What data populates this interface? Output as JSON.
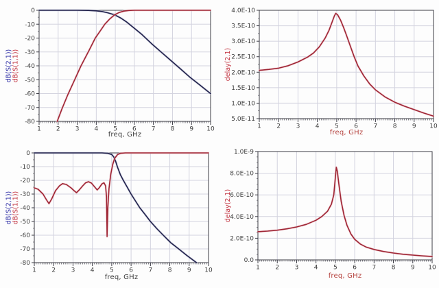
{
  "palette": {
    "grid": "#d3d3df",
    "frame": "#3a3a44",
    "tick_text": "#3c3c3c",
    "blue_trace": "#20204a",
    "blue_halo": "#bcc0d6",
    "red_trace": "#9e2534",
    "red_halo": "#efc0c7",
    "blue_label": "#2a2aa4",
    "red_label": "#c23340",
    "dark_label": "#3c3c3c"
  },
  "chart_data": [
    {
      "type": "line",
      "name": "lowpass-butterworth-sparams",
      "x_label": "freq, GHz",
      "x_label_color": "#3c3c3c",
      "y_axis_labels": [
        {
          "text": "dB(S(2,1))",
          "color": "#2a2aa4"
        },
        {
          "text": "dB(S(1,1))",
          "color": "#c23340"
        }
      ],
      "x_axis": {
        "min": 1,
        "max": 10,
        "minor_step": 0.1,
        "tick_values": [
          1,
          2,
          3,
          4,
          5,
          6,
          7,
          8,
          9,
          10
        ],
        "tick_labels": [
          "1",
          "2",
          "3",
          "4",
          "5",
          "6",
          "7",
          "8",
          "9",
          "10"
        ]
      },
      "y_axis": {
        "min": -80,
        "max": 0,
        "minor_divs": 2,
        "tick_values": [
          0,
          -10,
          -20,
          -30,
          -40,
          -50,
          -60,
          -70,
          -80
        ],
        "tick_labels": [
          "0",
          "-10",
          "-20",
          "-30",
          "-40",
          "-50",
          "-60",
          "-70",
          "-80"
        ]
      },
      "series": [
        {
          "name": "dB(S(2,1))",
          "color": "#20204a",
          "halo": "#bcc0d6",
          "points": [
            [
              1,
              0
            ],
            [
              2,
              0
            ],
            [
              3,
              0
            ],
            [
              3.6,
              -0.1
            ],
            [
              4.0,
              -0.4
            ],
            [
              4.3,
              -0.9
            ],
            [
              4.6,
              -1.8
            ],
            [
              4.97,
              -3.3
            ],
            [
              5.3,
              -5.7
            ],
            [
              5.6,
              -8.5
            ],
            [
              6.0,
              -13
            ],
            [
              6.4,
              -17.5
            ],
            [
              6.9,
              -24
            ],
            [
              7.4,
              -30
            ],
            [
              7.9,
              -36
            ],
            [
              8.4,
              -42
            ],
            [
              8.9,
              -48
            ],
            [
              9.45,
              -54
            ],
            [
              10,
              -60
            ]
          ]
        },
        {
          "name": "dB(S(1,1))",
          "color": "#9e2534",
          "halo": "#efc0c7",
          "points": [
            [
              1.95,
              -80
            ],
            [
              2.2,
              -71
            ],
            [
              2.5,
              -61
            ],
            [
              2.85,
              -50.5
            ],
            [
              3.2,
              -40
            ],
            [
              3.6,
              -29.5
            ],
            [
              3.95,
              -20
            ],
            [
              4.2,
              -15
            ],
            [
              4.45,
              -10
            ],
            [
              4.7,
              -6.3
            ],
            [
              4.97,
              -3.2
            ],
            [
              5.2,
              -1.6
            ],
            [
              5.45,
              -0.6
            ],
            [
              5.7,
              -0.15
            ],
            [
              6,
              0
            ],
            [
              7,
              0
            ],
            [
              8,
              0
            ],
            [
              9,
              0
            ],
            [
              10,
              0
            ]
          ]
        }
      ]
    },
    {
      "type": "line",
      "name": "group-delay-butterworth",
      "x_label": "freq, GHz",
      "x_label_color": "#b5423e",
      "y_axis_labels": [
        {
          "text": "delay(2,1)",
          "color": "#c23340"
        }
      ],
      "x_axis": {
        "min": 1,
        "max": 10,
        "minor_step": 0.1,
        "tick_values": [
          1,
          2,
          3,
          4,
          5,
          6,
          7,
          8,
          9,
          10
        ],
        "tick_labels": [
          "1",
          "2",
          "3",
          "4",
          "5",
          "6",
          "7",
          "8",
          "9",
          "10"
        ]
      },
      "y_axis": {
        "min": 5e-11,
        "max": 4e-10,
        "minor_divs": 2,
        "tick_values": [
          4e-10,
          3.5e-10,
          3e-10,
          2.5e-10,
          2e-10,
          1.5e-10,
          1e-10,
          5e-11
        ],
        "tick_labels": [
          "4.0E-10",
          "3.5E-10",
          "3.0E-10",
          "2.5E-10",
          "2.0E-10",
          "1.5E-10",
          "1.0E-10",
          "5.0E-11"
        ]
      },
      "series": [
        {
          "name": "delay(2,1)",
          "color": "#9e2534",
          "halo": "#efc0c7",
          "points": [
            [
              1,
              2.06e-10
            ],
            [
              1.5,
              2.09e-10
            ],
            [
              2,
              2.13e-10
            ],
            [
              2.5,
              2.21e-10
            ],
            [
              3,
              2.33e-10
            ],
            [
              3.5,
              2.49e-10
            ],
            [
              3.8,
              2.62e-10
            ],
            [
              4.1,
              2.82e-10
            ],
            [
              4.4,
              3.1e-10
            ],
            [
              4.6,
              3.35e-10
            ],
            [
              4.75,
              3.6e-10
            ],
            [
              4.88,
              3.82e-10
            ],
            [
              4.95,
              3.9e-10
            ],
            [
              5.05,
              3.85e-10
            ],
            [
              5.2,
              3.68e-10
            ],
            [
              5.35,
              3.45e-10
            ],
            [
              5.5,
              3.2e-10
            ],
            [
              5.7,
              2.85e-10
            ],
            [
              5.9,
              2.5e-10
            ],
            [
              6.1,
              2.2e-10
            ],
            [
              6.4,
              1.88e-10
            ],
            [
              6.7,
              1.62e-10
            ],
            [
              7,
              1.43e-10
            ],
            [
              7.5,
              1.2e-10
            ],
            [
              8,
              1.03e-10
            ],
            [
              8.5,
              9e-11
            ],
            [
              9,
              7.9e-11
            ],
            [
              9.5,
              6.8e-11
            ],
            [
              10,
              5.8e-11
            ]
          ]
        }
      ]
    },
    {
      "type": "line",
      "name": "lowpass-elliptic-sparams",
      "x_label": "freq, GHz",
      "x_label_color": "#3c3c3c",
      "y_axis_labels": [
        {
          "text": "dB(S(2,1))",
          "color": "#2a2aa4"
        },
        {
          "text": "dB(S(1,1))",
          "color": "#c23340"
        }
      ],
      "x_axis": {
        "min": 1,
        "max": 10,
        "minor_step": 0.1,
        "tick_values": [
          1,
          2,
          3,
          4,
          5,
          6,
          7,
          8,
          9,
          10
        ],
        "tick_labels": [
          "1",
          "2",
          "3",
          "4",
          "5",
          "6",
          "7",
          "8",
          "9",
          "10"
        ]
      },
      "y_axis": {
        "min": -80,
        "max": 0,
        "minor_divs": 2,
        "tick_values": [
          0,
          -10,
          -20,
          -30,
          -40,
          -50,
          -60,
          -70,
          -80
        ],
        "tick_labels": [
          "0",
          "-10",
          "-20",
          "-30",
          "-40",
          "-50",
          "-60",
          "-70",
          "-80"
        ]
      },
      "series": [
        {
          "name": "dB(S(2,1))",
          "color": "#20204a",
          "halo": "#bcc0d6",
          "points": [
            [
              1,
              0
            ],
            [
              2,
              0
            ],
            [
              3,
              0
            ],
            [
              4,
              0
            ],
            [
              4.5,
              0
            ],
            [
              4.8,
              -0.3
            ],
            [
              5.0,
              -1.2
            ],
            [
              5.1,
              -2.8
            ],
            [
              5.2,
              -6
            ],
            [
              5.3,
              -10.5
            ],
            [
              5.45,
              -16
            ],
            [
              5.6,
              -20
            ],
            [
              5.8,
              -25
            ],
            [
              6.0,
              -30
            ],
            [
              6.2,
              -34.5
            ],
            [
              6.45,
              -40
            ],
            [
              6.7,
              -44.5
            ],
            [
              7.0,
              -50
            ],
            [
              7.35,
              -55.5
            ],
            [
              7.66,
              -60
            ],
            [
              8.05,
              -65.5
            ],
            [
              8.46,
              -70
            ],
            [
              8.9,
              -75
            ],
            [
              9.38,
              -80
            ]
          ]
        },
        {
          "name": "dB(S(1,1))",
          "color": "#9e2534",
          "halo": "#efc0c7",
          "points": [
            [
              1,
              -25.5
            ],
            [
              1.2,
              -26.5
            ],
            [
              1.45,
              -30
            ],
            [
              1.62,
              -34
            ],
            [
              1.76,
              -37
            ],
            [
              1.9,
              -33.5
            ],
            [
              2.1,
              -27.5
            ],
            [
              2.3,
              -24
            ],
            [
              2.46,
              -22.4
            ],
            [
              2.65,
              -23
            ],
            [
              2.9,
              -25.5
            ],
            [
              3.05,
              -27.5
            ],
            [
              3.18,
              -29
            ],
            [
              3.32,
              -27
            ],
            [
              3.5,
              -24
            ],
            [
              3.65,
              -21.8
            ],
            [
              3.8,
              -21
            ],
            [
              3.95,
              -22
            ],
            [
              4.1,
              -24.5
            ],
            [
              4.25,
              -27
            ],
            [
              4.35,
              -25.5
            ],
            [
              4.5,
              -22.5
            ],
            [
              4.6,
              -21.8
            ],
            [
              4.68,
              -24
            ],
            [
              4.73,
              -32
            ],
            [
              4.76,
              -61
            ],
            [
              4.8,
              -40
            ],
            [
              4.86,
              -26
            ],
            [
              4.95,
              -15.5
            ],
            [
              5.05,
              -8.5
            ],
            [
              5.15,
              -4
            ],
            [
              5.3,
              -1.2
            ],
            [
              5.45,
              -0.3
            ],
            [
              5.7,
              0
            ],
            [
              6.5,
              0
            ],
            [
              8,
              0
            ],
            [
              10,
              0
            ]
          ]
        }
      ]
    },
    {
      "type": "line",
      "name": "group-delay-elliptic",
      "x_label": "freq, GHz",
      "x_label_color": "#b5423e",
      "y_axis_labels": [
        {
          "text": "delay(2,1)",
          "color": "#c23340"
        }
      ],
      "x_axis": {
        "min": 1,
        "max": 10,
        "minor_step": 0.1,
        "tick_values": [
          1,
          2,
          3,
          4,
          5,
          6,
          7,
          8,
          9,
          10
        ],
        "tick_labels": [
          "1",
          "2",
          "3",
          "4",
          "5",
          "6",
          "7",
          "8",
          "9",
          "10"
        ]
      },
      "y_axis": {
        "min": 0,
        "max": 1e-09,
        "minor_divs": 4,
        "tick_values": [
          1e-09,
          8e-10,
          6e-10,
          4e-10,
          2e-10,
          0
        ],
        "tick_labels": [
          "1.0E-9",
          "8.0E-10",
          "6.0E-10",
          "4.0E-10",
          "2.0E-10",
          "0.0"
        ]
      },
      "series": [
        {
          "name": "delay(2,1)",
          "color": "#9e2534",
          "halo": "#efc0c7",
          "points": [
            [
              1,
              2.6e-10
            ],
            [
              1.5,
              2.66e-10
            ],
            [
              2,
              2.74e-10
            ],
            [
              2.5,
              2.87e-10
            ],
            [
              3,
              3.04e-10
            ],
            [
              3.5,
              3.28e-10
            ],
            [
              4,
              3.66e-10
            ],
            [
              4.3,
              4e-10
            ],
            [
              4.6,
              4.5e-10
            ],
            [
              4.8,
              5.15e-10
            ],
            [
              4.92,
              6e-10
            ],
            [
              5.0,
              7.6e-10
            ],
            [
              5.05,
              8.55e-10
            ],
            [
              5.1,
              8.2e-10
            ],
            [
              5.18,
              7e-10
            ],
            [
              5.3,
              5.4e-10
            ],
            [
              5.45,
              4.1e-10
            ],
            [
              5.6,
              3.2e-10
            ],
            [
              5.8,
              2.4e-10
            ],
            [
              6.0,
              1.9e-10
            ],
            [
              6.3,
              1.45e-10
            ],
            [
              6.6,
              1.18e-10
            ],
            [
              7,
              9.6e-11
            ],
            [
              7.5,
              7.7e-11
            ],
            [
              8,
              6.3e-11
            ],
            [
              8.5,
              5.2e-11
            ],
            [
              9,
              4.4e-11
            ],
            [
              9.5,
              3.7e-11
            ],
            [
              10,
              3.1e-11
            ]
          ]
        }
      ]
    }
  ]
}
